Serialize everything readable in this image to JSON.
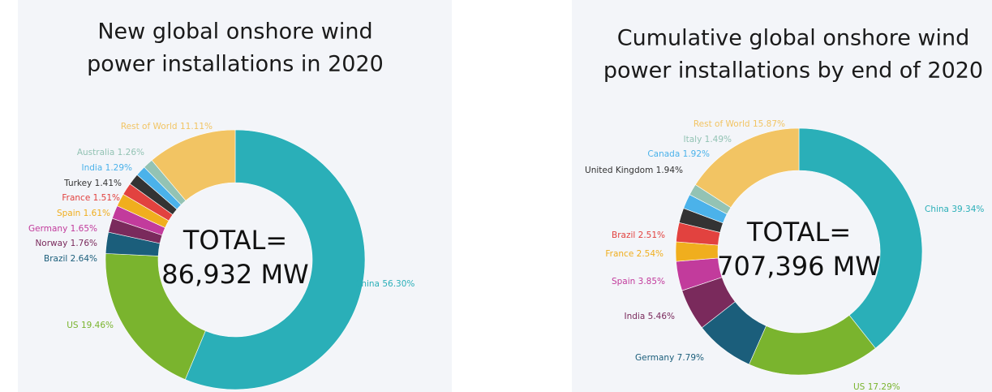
{
  "chart_data": [
    {
      "type": "pie",
      "title": [
        "New global onshore wind",
        "power installations in  2020"
      ],
      "annotations": [
        "TOTAL=",
        "86,932 MW"
      ],
      "categories": [
        "China",
        "US",
        "Brazil",
        "Norway",
        "Germany",
        "Spain",
        "France",
        "Turkey",
        "India",
        "Australia",
        "Rest of World"
      ],
      "values": [
        56.3,
        19.46,
        2.64,
        1.76,
        1.65,
        1.61,
        1.51,
        1.41,
        1.29,
        1.26,
        11.11
      ],
      "value_labels": [
        "56.30%",
        "19.46%",
        "2.64%",
        "1.76%",
        "1.65%",
        "1.61%",
        "1.51%",
        "1.41%",
        "1.29%",
        "1.26%",
        "11.11%"
      ],
      "colors": [
        "#2aafb8",
        "#7ab42e",
        "#1b5e7b",
        "#7a2a5c",
        "#c23b9c",
        "#f0ae1e",
        "#e2423f",
        "#333333",
        "#4bb2ea",
        "#93c3b4",
        "#f2c463"
      ]
    },
    {
      "type": "pie",
      "title": [
        "Cumulative global onshore wind",
        "power installations by end of 2020"
      ],
      "annotations": [
        "TOTAL=",
        "707,396 MW"
      ],
      "categories": [
        "China",
        "US",
        "Germany",
        "India",
        "Spain",
        "France",
        "Brazil",
        "United Kingdom",
        "Canada",
        "Italy",
        "Rest of World"
      ],
      "values": [
        39.34,
        17.29,
        7.79,
        5.46,
        3.85,
        2.54,
        2.51,
        1.94,
        1.92,
        1.49,
        15.87
      ],
      "value_labels": [
        "39.34%",
        "17.29%",
        "7.79%",
        "5.46%",
        "3.85%",
        "2.54%",
        "2.51%",
        "1.94%",
        "1.92%",
        "1.49%",
        "15.87%"
      ],
      "colors": [
        "#2aafb8",
        "#7ab42e",
        "#1b5e7b",
        "#7a2a5c",
        "#c23b9c",
        "#f0ae1e",
        "#e2423f",
        "#333333",
        "#4bb2ea",
        "#93c3b4",
        "#f2c463"
      ]
    }
  ]
}
